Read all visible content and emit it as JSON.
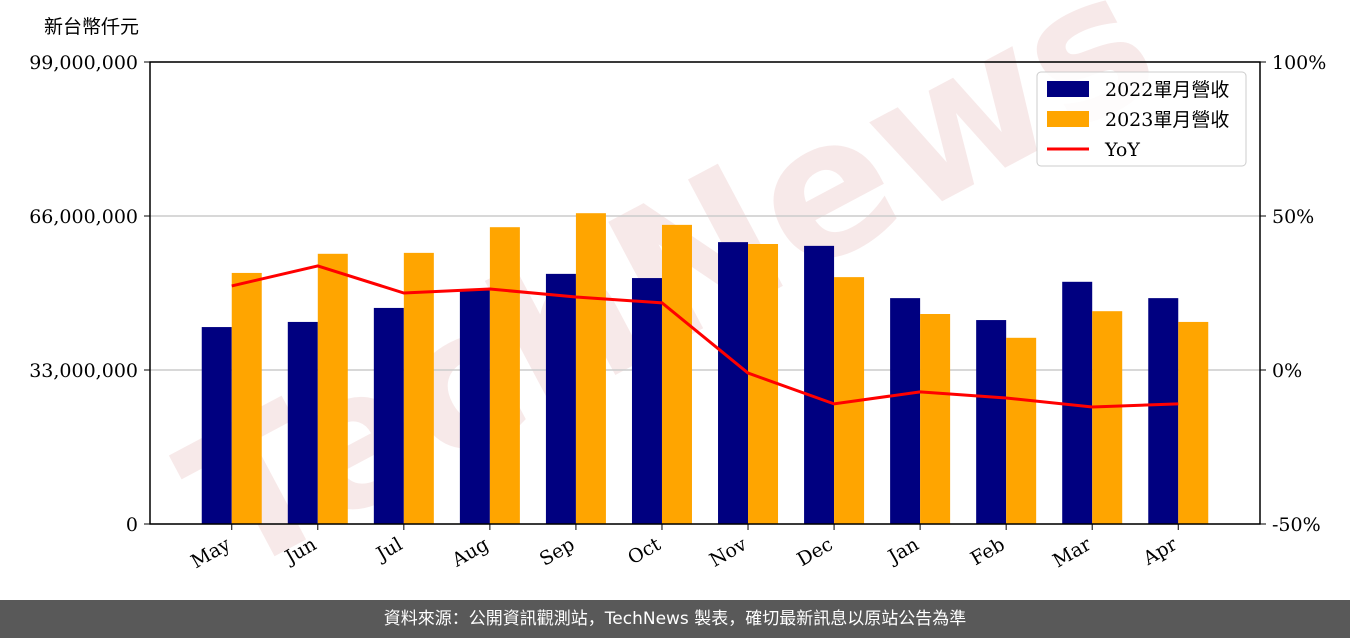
{
  "chart_data": {
    "type": "bar-line",
    "y_unit_label": "新台幣仟元",
    "watermark": "TechNews",
    "categories": [
      "May",
      "Jun",
      "Jul",
      "Aug",
      "Sep",
      "Oct",
      "Nov",
      "Dec",
      "Jan",
      "Feb",
      "Mar",
      "Apr"
    ],
    "series": [
      {
        "name": "2022單月營收",
        "type": "bar",
        "color": "#000080",
        "values": [
          42200000,
          43300000,
          46300000,
          50100000,
          53600000,
          52700000,
          60400000,
          59600000,
          48400000,
          43700000,
          51900000,
          48400000
        ]
      },
      {
        "name": "2023單月營收",
        "type": "bar",
        "color": "#ffa500",
        "values": [
          53800000,
          57900000,
          58100000,
          63600000,
          66600000,
          64100000,
          60000000,
          52900000,
          45000000,
          39900000,
          45600000,
          43300000
        ]
      },
      {
        "name": "YoY",
        "type": "line",
        "axis": "y2",
        "color": "#ff0000",
        "values": [
          27.3,
          33.8,
          25,
          26.3,
          23.7,
          21.8,
          -1,
          -11,
          -7.1,
          -9.1,
          -12,
          -11
        ]
      }
    ],
    "ylim": [
      0,
      99000000
    ],
    "yticks": [
      0,
      {
        "value": 33000000,
        "label": "33,000,000"
      },
      {
        "value": 66000000,
        "label": "66,000,000"
      },
      {
        "value": 99000000,
        "label": "99,000,000"
      }
    ],
    "y2lim": [
      -50,
      100
    ],
    "y2ticks": [
      {
        "value": -50,
        "label": "-50%"
      },
      {
        "value": 0,
        "label": "0%"
      },
      {
        "value": 50,
        "label": "50%"
      },
      {
        "value": 100,
        "label": "100%"
      }
    ],
    "grid": true,
    "legend": "upper right"
  },
  "footer": "資料來源：公開資訊觀測站，TechNews 製表，確切最新訊息以原站公告為準"
}
